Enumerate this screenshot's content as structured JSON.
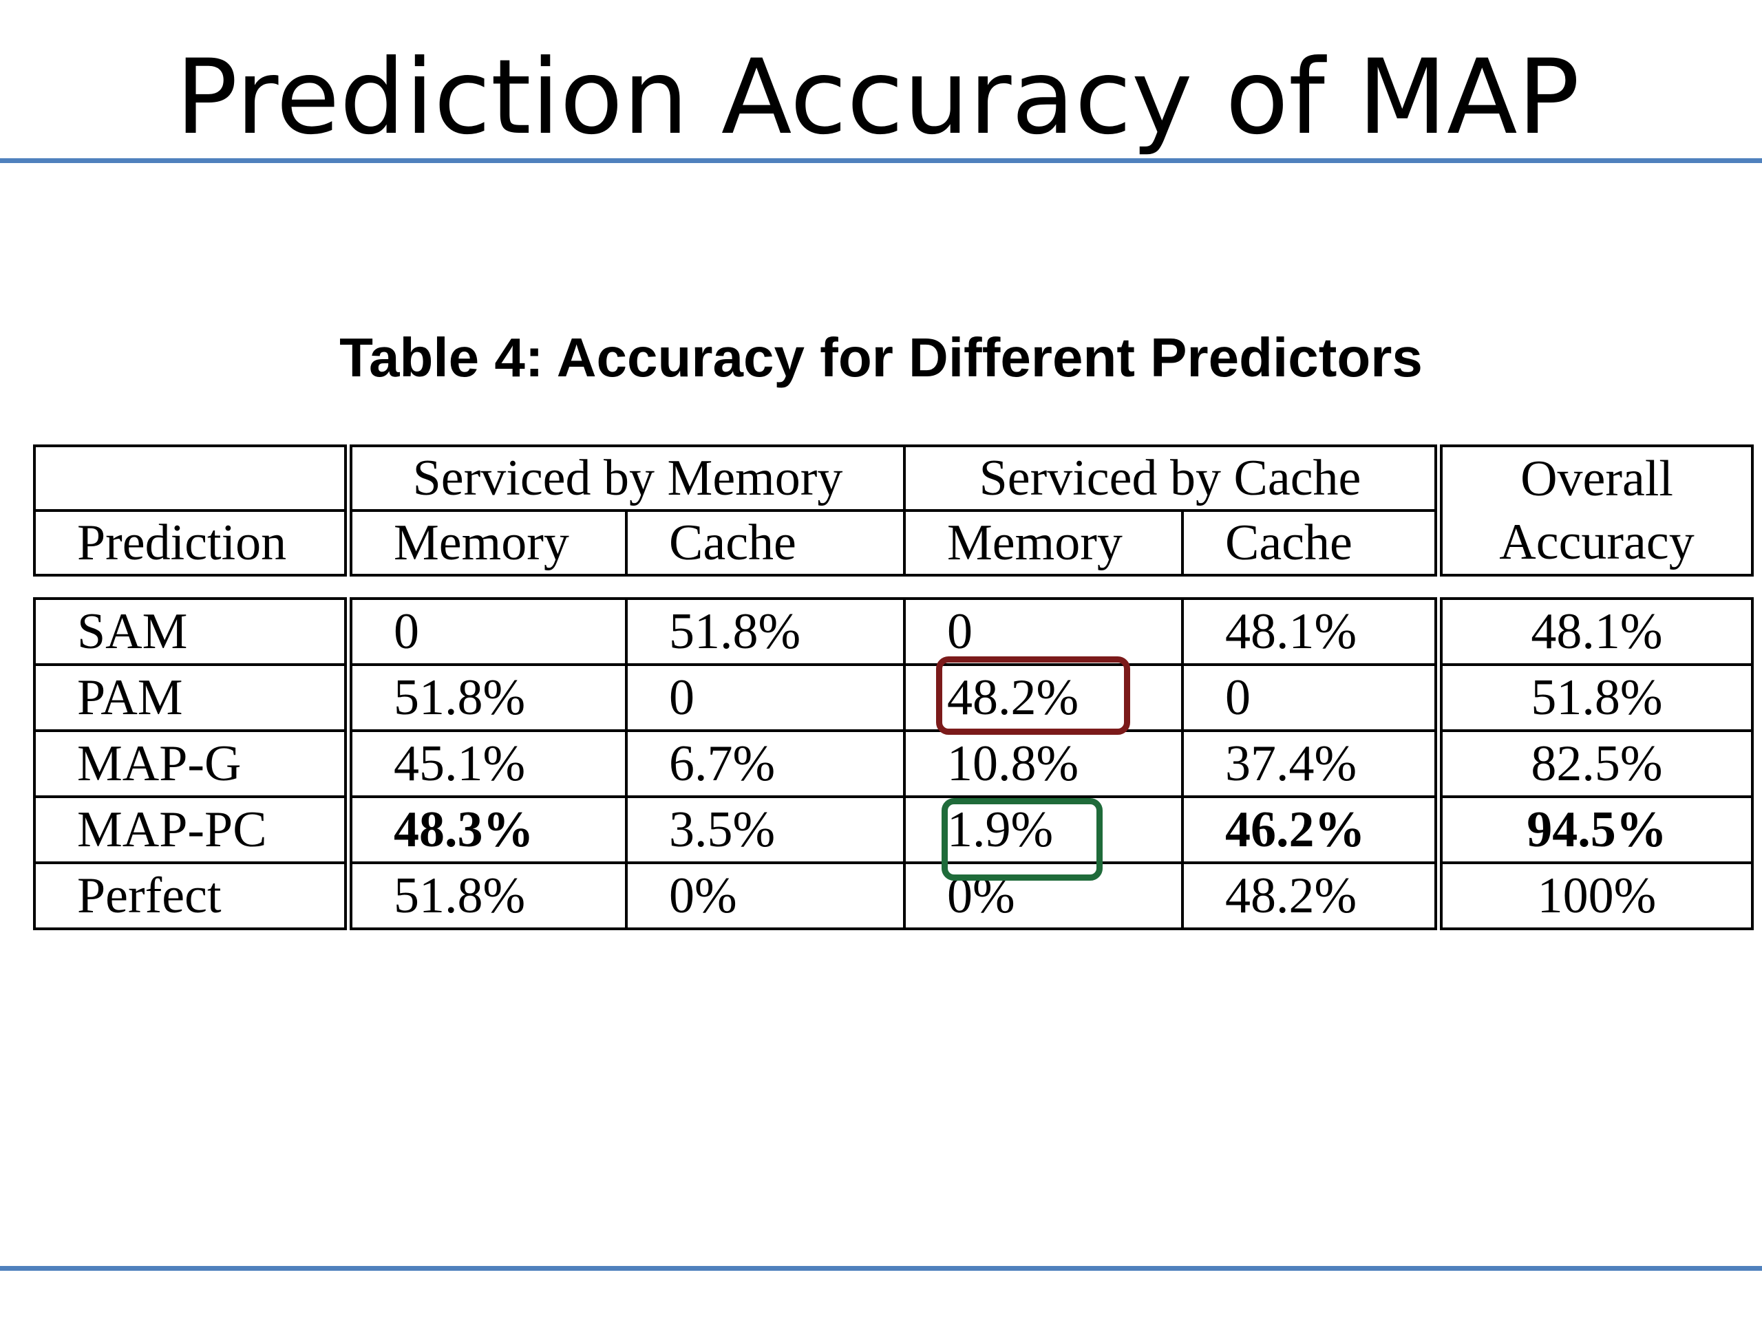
{
  "slide": {
    "title": "Prediction Accuracy of MAP",
    "rule_color": "#4F81BD"
  },
  "table": {
    "caption": "Table 4: Accuracy for Different Predictors",
    "group_headers": {
      "serviced_by_memory": "Serviced by Memory",
      "serviced_by_cache": "Serviced by Cache",
      "overall_line1": "Overall",
      "overall_line2": "Accuracy"
    },
    "sub_headers": {
      "prediction": "Prediction",
      "mem_memory": "Memory",
      "mem_cache": "Cache",
      "cache_memory": "Memory",
      "cache_cache": "Cache"
    },
    "rows": [
      {
        "name": "SAM",
        "mem_memory": "0",
        "mem_cache": "51.8%",
        "cache_memory": "0",
        "cache_cache": "48.1%",
        "overall": "48.1%"
      },
      {
        "name": "PAM",
        "mem_memory": "51.8%",
        "mem_cache": "0",
        "cache_memory": "48.2%",
        "cache_cache": "0",
        "overall": "51.8%"
      },
      {
        "name": "MAP-G",
        "mem_memory": "45.1%",
        "mem_cache": "6.7%",
        "cache_memory": "10.8%",
        "cache_cache": "37.4%",
        "overall": "82.5%"
      },
      {
        "name": "MAP-PC",
        "mem_memory": "48.3%",
        "mem_cache": "3.5%",
        "cache_memory": "1.9%",
        "cache_cache": "46.2%",
        "overall": "94.5%"
      },
      {
        "name": "Perfect",
        "mem_memory": "51.8%",
        "mem_cache": "0%",
        "cache_memory": "0%",
        "cache_cache": "48.2%",
        "overall": "100%"
      }
    ]
  },
  "highlights": {
    "bad_color": "#7B1A1A",
    "good_color": "#1F6B3A"
  }
}
